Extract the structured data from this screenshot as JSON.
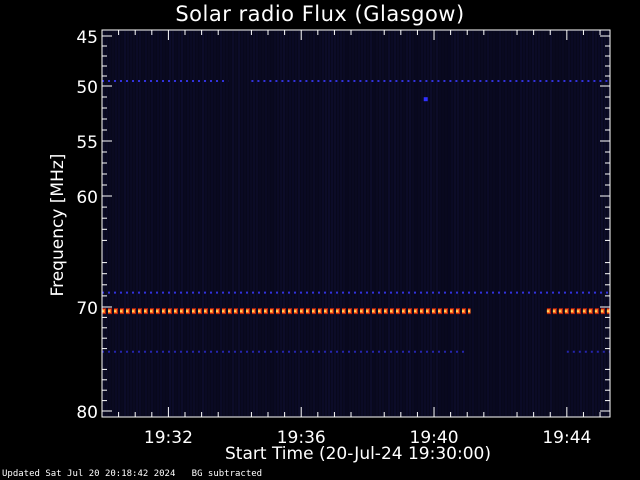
{
  "chart_data": {
    "type": "heatmap",
    "title": "Solar radio Flux (Glasgow)",
    "xlabel": "Start Time (20-Jul-24 19:30:00)",
    "ylabel": "Frequency [MHz]",
    "xlim_minutes": [
      0,
      15.3
    ],
    "ylim_mhz": [
      45,
      80
    ],
    "x_ticks": [
      {
        "minute": 2,
        "label": "19:32"
      },
      {
        "minute": 6,
        "label": "19:36"
      },
      {
        "minute": 10,
        "label": "19:40"
      },
      {
        "minute": 14,
        "label": "19:44"
      }
    ],
    "y_ticks": [
      {
        "mhz": 45,
        "label": "45"
      },
      {
        "mhz": 50,
        "label": "50"
      },
      {
        "mhz": 55,
        "label": "55"
      },
      {
        "mhz": 60,
        "label": "60"
      },
      {
        "mhz": 70,
        "label": "70"
      },
      {
        "mhz": 80,
        "label": "80"
      }
    ],
    "background_color": "#08081c",
    "bands": [
      {
        "mhz": 49.5,
        "intensity": "low",
        "color": "#3a3aff",
        "segments": [
          [
            0,
            3.8
          ],
          [
            4.5,
            15.3
          ]
        ]
      },
      {
        "mhz": 68.7,
        "intensity": "low",
        "color": "#3a3aff",
        "segments": [
          [
            0,
            15.3
          ]
        ]
      },
      {
        "mhz": 70.4,
        "intensity": "high",
        "color": "#ff7a20",
        "segments": [
          [
            0,
            11.1
          ],
          [
            13.4,
            15.3
          ]
        ]
      },
      {
        "mhz": 74.3,
        "intensity": "low",
        "color": "#2a2ac8",
        "segments": [
          [
            0,
            11
          ],
          [
            14,
            15.3
          ]
        ]
      }
    ],
    "point_events": [
      {
        "minute": 9.75,
        "mhz": 51.2,
        "color": "#3030ff"
      }
    ]
  },
  "footer": {
    "updated": "Updated Sat Jul 20 20:18:42 2024",
    "note": "BG subtracted"
  }
}
